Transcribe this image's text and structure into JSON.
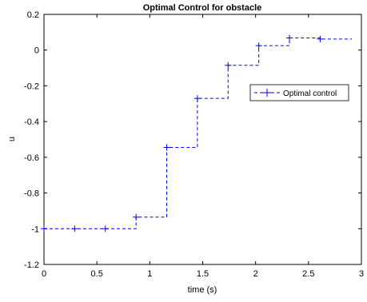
{
  "chart_data": {
    "type": "line",
    "title": "Optimal Control for obstacle",
    "xlabel": "time (s)",
    "ylabel": "u",
    "xlim": [
      0,
      3
    ],
    "ylim": [
      -1.2,
      0.2
    ],
    "x_ticks": [
      "0",
      "0.5",
      "1",
      "1.5",
      "2",
      "2.5",
      "3"
    ],
    "y_ticks": [
      "-1.2",
      "-1",
      "-0.8",
      "-0.6",
      "-0.4",
      "-0.2",
      "0",
      "0.2"
    ],
    "grid": false,
    "legend_position": "right",
    "series": [
      {
        "name": "Optimal control",
        "color": "#0000ff",
        "line_style": "dashed",
        "marker": "plus",
        "step": true,
        "x": [
          0,
          0.29,
          0.58,
          0.87,
          1.16,
          1.45,
          1.74,
          2.03,
          2.32,
          2.61
        ],
        "values": [
          -1.0,
          -1.0,
          -1.0,
          -0.935,
          -0.545,
          -0.27,
          -0.085,
          0.025,
          0.068,
          0.062
        ],
        "x_end": 2.91
      }
    ]
  }
}
